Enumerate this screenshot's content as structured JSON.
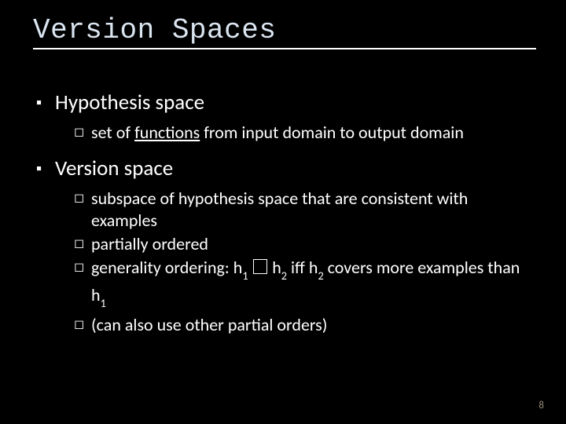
{
  "title": "Version Spaces",
  "colors": {
    "background": "#000000",
    "title": "#dae5f0",
    "body_text": "#ffffff",
    "underline": "#ffffff",
    "page_num": "#9c8f7a"
  },
  "fonts": {
    "title_family": "Consolas, Courier New, monospace",
    "title_size_pt": 28,
    "body_family": "Calibri, Segoe UI, Arial, sans-serif",
    "l1_size_pt": 21,
    "l2_size_pt": 17
  },
  "bullets": {
    "l1_glyph": "▪",
    "l2_glyph": "◻"
  },
  "items": [
    {
      "text": "Hypothesis space",
      "children": [
        {
          "pre": "set of ",
          "underline": "functions",
          "post": " from input domain to output domain"
        }
      ]
    },
    {
      "text": "Version space",
      "children": [
        {
          "pre": "subspace of hypothesis space that are consistent with examples"
        },
        {
          "pre": "partially ordered"
        },
        {
          "generality": true,
          "g_pre": "generality ordering: h",
          "g_s1": "1",
          "g_mid1": " ",
          "g_sym": true,
          "g_mid2": " h",
          "g_s2": "2",
          "g_mid3": " iff h",
          "g_s3": "2",
          "g_mid4": " covers more examples than h",
          "g_s4": "1"
        },
        {
          "pre": "(can also use other partial orders)"
        }
      ]
    }
  ],
  "page_number": "8"
}
